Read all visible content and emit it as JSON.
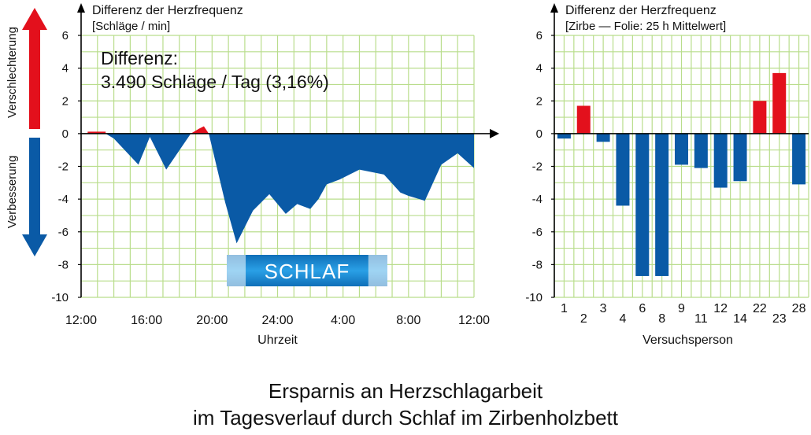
{
  "colors": {
    "grid": "#b9dd8c",
    "negative": "#0a5aa6",
    "positive": "#e3101c",
    "axis": "#000000",
    "badge_gradient_mid": "#1e8fd8"
  },
  "indicator": {
    "up_label": "Verschlechterung",
    "down_label": "Verbesserung"
  },
  "caption": {
    "line1": "Ersparnis an Herzschlagarbeit",
    "line2": "im Tagesverlauf durch Schlaf im Zirbenholzbett"
  },
  "chart_data": [
    {
      "type": "area",
      "title": "Differenz der Herzfrequenz",
      "subtitle": "[Schläge / min]",
      "xlabel": "Uhrzeit",
      "ylabel": "",
      "ylim": [
        -10,
        6
      ],
      "yticks": [
        6,
        4,
        2,
        0,
        -2,
        -4,
        -6,
        -8,
        -10
      ],
      "xlim_hours": [
        12,
        36
      ],
      "xticks": [
        {
          "h": 12,
          "label": "12:00"
        },
        {
          "h": 16,
          "label": "16:00"
        },
        {
          "h": 20,
          "label": "20:00"
        },
        {
          "h": 24,
          "label": "24:00"
        },
        {
          "h": 28,
          "label": "4:00"
        },
        {
          "h": 32,
          "label": "8:00"
        },
        {
          "h": 36,
          "label": "12:00"
        }
      ],
      "grid": true,
      "annotation_line1": "Differenz:",
      "annotation_line2": "3.490 Schläge / Tag (3,16%)",
      "badge": {
        "label": "SCHLAF",
        "from_h": 20.9,
        "to_h": 30.7
      },
      "series": [
        {
          "x": [
            12.5,
            13.5,
            14.0,
            15.5,
            16.2,
            17.2,
            18.7,
            19.2,
            19.5,
            19.8,
            20.8,
            21.5,
            22.5,
            23.5,
            24.5,
            25.2,
            26.0,
            26.5,
            27.0,
            27.8,
            29.0,
            30.5,
            31.5,
            32.0,
            33.0,
            34.0,
            35.0,
            36.0
          ],
          "y": [
            0.0,
            0.0,
            -0.3,
            -1.9,
            -0.2,
            -2.2,
            0.0,
            0.3,
            0.45,
            0.0,
            -4.2,
            -6.7,
            -4.7,
            -3.7,
            -4.9,
            -4.3,
            -4.6,
            -4.0,
            -3.1,
            -2.8,
            -2.2,
            -2.5,
            -3.6,
            -3.8,
            -4.1,
            -1.9,
            -1.2,
            -2.1
          ]
        }
      ]
    },
    {
      "type": "bar",
      "title": "Differenz der Herzfrequenz",
      "subtitle": "[Zirbe — Folie: 25 h Mittelwert]",
      "xlabel": "Versuchsperson",
      "ylabel": "",
      "ylim": [
        -10,
        6
      ],
      "yticks": [
        6,
        4,
        2,
        0,
        -2,
        -4,
        -6,
        -8,
        -10
      ],
      "grid": true,
      "categories": [
        "1",
        "2",
        "3",
        "4",
        "6",
        "8",
        "9",
        "11",
        "12",
        "14",
        "22",
        "23",
        "28"
      ],
      "values": [
        -0.3,
        1.7,
        -0.5,
        -4.4,
        -8.7,
        -8.7,
        -1.9,
        -2.1,
        -3.3,
        -2.9,
        2.0,
        3.7,
        -3.1
      ]
    }
  ]
}
